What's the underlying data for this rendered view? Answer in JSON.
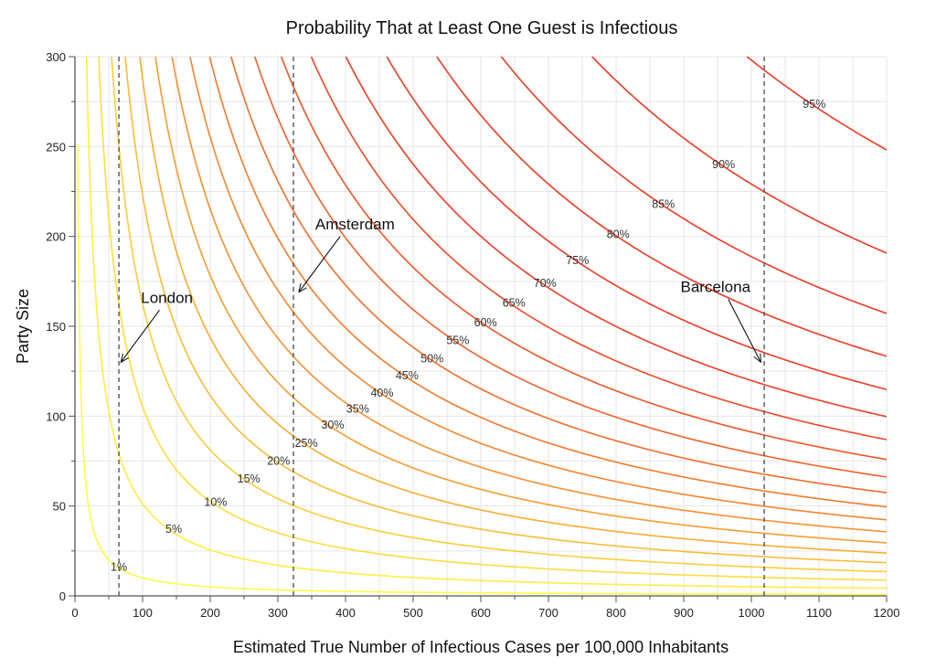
{
  "chart_data": {
    "type": "line",
    "title": "Probability That at Least One Guest is Infectious",
    "xlabel": "Estimated True Number of Infectious Cases per 100,000 Inhabitants",
    "ylabel": "Party Size",
    "xlim": [
      0,
      1200
    ],
    "ylim": [
      0,
      300
    ],
    "grid": true,
    "x_ticks": [
      "0",
      "100",
      "200",
      "300",
      "400",
      "500",
      "600",
      "700",
      "800",
      "900",
      "1000",
      "1100",
      "1200"
    ],
    "y_ticks": [
      "0",
      "50",
      "100",
      "150",
      "200",
      "250",
      "300"
    ],
    "formula": "party_size = ln(1 - P) / ln(1 - cases/100000)",
    "series": [
      {
        "name": "1%",
        "p": 0.01,
        "label_at": [
          65,
          16
        ]
      },
      {
        "name": "5%",
        "p": 0.05,
        "label_at": [
          146,
          37
        ]
      },
      {
        "name": "10%",
        "p": 0.1,
        "label_at": [
          208,
          52
        ]
      },
      {
        "name": "15%",
        "p": 0.15,
        "label_at": [
          257,
          65
        ]
      },
      {
        "name": "20%",
        "p": 0.2,
        "label_at": [
          301,
          75
        ]
      },
      {
        "name": "25%",
        "p": 0.25,
        "label_at": [
          342,
          85
        ]
      },
      {
        "name": "30%",
        "p": 0.3,
        "label_at": [
          381,
          95
        ]
      },
      {
        "name": "35%",
        "p": 0.35,
        "label_at": [
          418,
          104
        ]
      },
      {
        "name": "40%",
        "p": 0.4,
        "label_at": [
          454,
          113
        ]
      },
      {
        "name": "45%",
        "p": 0.45,
        "label_at": [
          491,
          122.5
        ]
      },
      {
        "name": "50%",
        "p": 0.5,
        "label_at": [
          528,
          132
        ]
      },
      {
        "name": "55%",
        "p": 0.55,
        "label_at": [
          566,
          142
        ]
      },
      {
        "name": "60%",
        "p": 0.6,
        "label_at": [
          607,
          152
        ]
      },
      {
        "name": "65%",
        "p": 0.65,
        "label_at": [
          649,
          163
        ]
      },
      {
        "name": "70%",
        "p": 0.7,
        "label_at": [
          695,
          174
        ]
      },
      {
        "name": "75%",
        "p": 0.75,
        "label_at": [
          743,
          186.5
        ]
      },
      {
        "name": "80%",
        "p": 0.8,
        "label_at": [
          803,
          201
        ]
      },
      {
        "name": "85%",
        "p": 0.85,
        "label_at": [
          870,
          218
        ]
      },
      {
        "name": "90%",
        "p": 0.9,
        "label_at": [
          959,
          240
        ]
      },
      {
        "name": "95%",
        "p": 0.95,
        "label_at": [
          1093,
          273.5
        ]
      }
    ],
    "annotations": [
      {
        "text": "London",
        "x": 65,
        "text_at": [
          136,
          166
        ],
        "arrow_from": [
          125,
          159
        ],
        "arrow_to": [
          68,
          130
        ]
      },
      {
        "text": "Amsterdam",
        "x": 323,
        "text_at": [
          414,
          207
        ],
        "arrow_from": [
          392,
          200
        ],
        "arrow_to": [
          331,
          169
        ]
      },
      {
        "text": "Barcelona",
        "x": 1019,
        "text_at": [
          947,
          172
        ],
        "arrow_from": [
          966,
          165
        ],
        "arrow_to": [
          1014,
          130
        ]
      }
    ],
    "colors": {
      "low": "#ffff44",
      "mid": "#f7a030",
      "high": "#ee3a24",
      "grid": "#e6e6e6",
      "axis": "#555555",
      "text": "#222222"
    }
  }
}
